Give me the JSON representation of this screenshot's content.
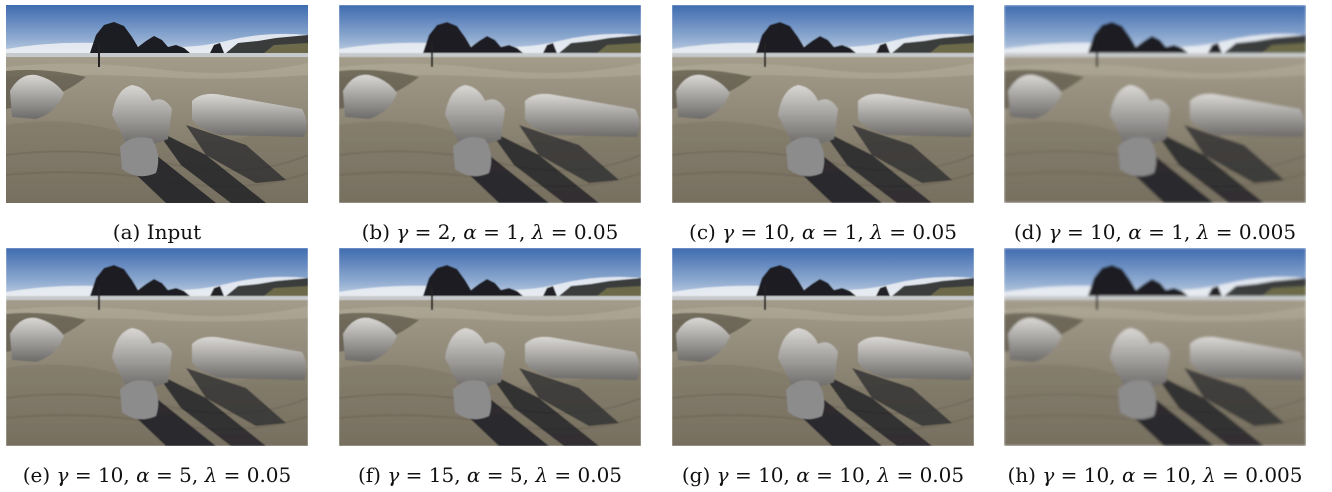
{
  "figure": {
    "panels": [
      {
        "label": "(a)",
        "parts": [
          {
            "t": "Input",
            "m": false
          }
        ],
        "variant": "input"
      },
      {
        "label": "(b)",
        "parts": [
          {
            "t": "γ",
            "m": true
          },
          {
            "t": " = 2, ",
            "m": false
          },
          {
            "t": "α",
            "m": true
          },
          {
            "t": " = 1, ",
            "m": false
          },
          {
            "t": "λ",
            "m": true
          },
          {
            "t": " = 0.05",
            "m": false
          }
        ],
        "variant": "smooth"
      },
      {
        "label": "(c)",
        "parts": [
          {
            "t": "γ",
            "m": true
          },
          {
            "t": " = 10, ",
            "m": false
          },
          {
            "t": "α",
            "m": true
          },
          {
            "t": " = 1, ",
            "m": false
          },
          {
            "t": "λ",
            "m": true
          },
          {
            "t": " = 0.05",
            "m": false
          }
        ],
        "variant": "smooth"
      },
      {
        "label": "(d)",
        "parts": [
          {
            "t": "γ",
            "m": true
          },
          {
            "t": " = 10, ",
            "m": false
          },
          {
            "t": "α",
            "m": true
          },
          {
            "t": " = 1, ",
            "m": false
          },
          {
            "t": "λ",
            "m": true
          },
          {
            "t": " = 0.005",
            "m": false
          }
        ],
        "variant": "soft"
      },
      {
        "label": "(e)",
        "parts": [
          {
            "t": "γ",
            "m": true
          },
          {
            "t": " = 10, ",
            "m": false
          },
          {
            "t": "α",
            "m": true
          },
          {
            "t": " = 5, ",
            "m": false
          },
          {
            "t": "λ",
            "m": true
          },
          {
            "t": " = 0.05",
            "m": false
          }
        ],
        "variant": "smooth"
      },
      {
        "label": "(f)",
        "parts": [
          {
            "t": "γ",
            "m": true
          },
          {
            "t": " = 15, ",
            "m": false
          },
          {
            "t": "α",
            "m": true
          },
          {
            "t": " = 5, ",
            "m": false
          },
          {
            "t": "λ",
            "m": true
          },
          {
            "t": " = 0.05",
            "m": false
          }
        ],
        "variant": "smooth"
      },
      {
        "label": "(g)",
        "parts": [
          {
            "t": "γ",
            "m": true
          },
          {
            "t": " = 10, ",
            "m": false
          },
          {
            "t": "α",
            "m": true
          },
          {
            "t": " = 10, ",
            "m": false
          },
          {
            "t": "λ",
            "m": true
          },
          {
            "t": " = 0.05",
            "m": false
          }
        ],
        "variant": "smooth"
      },
      {
        "label": "(h)",
        "parts": [
          {
            "t": "γ",
            "m": true
          },
          {
            "t": " = 10, ",
            "m": false
          },
          {
            "t": "α",
            "m": true
          },
          {
            "t": " = 10, ",
            "m": false
          },
          {
            "t": "λ",
            "m": true
          },
          {
            "t": " = 0.005",
            "m": false
          }
        ],
        "variant": "soft"
      }
    ],
    "colors": {
      "sky_top": "#3f6bb0",
      "sky_bottom": "#dfe6ee",
      "rock": "#1c1d22",
      "sand": "#8f8775",
      "sand_dark": "#5e574a",
      "shadow": "#1e1f24",
      "driftwood": "#b9b7b4"
    }
  }
}
